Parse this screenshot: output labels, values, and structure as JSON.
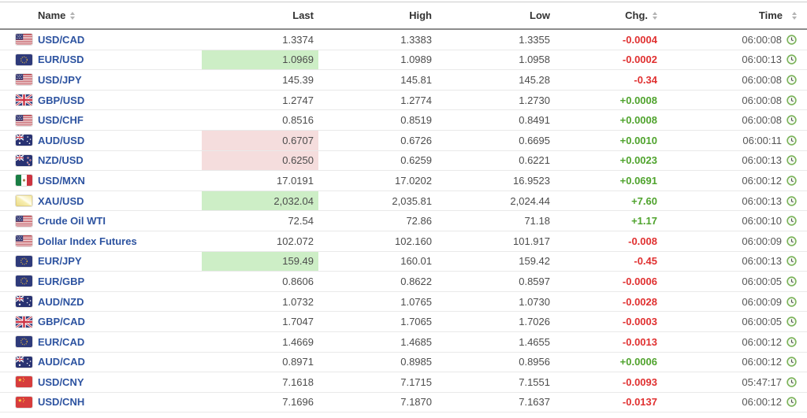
{
  "table": {
    "columns": [
      {
        "label": "Name",
        "sortable": true
      },
      {
        "label": "Last",
        "sortable": false
      },
      {
        "label": "High",
        "sortable": false
      },
      {
        "label": "Low",
        "sortable": false
      },
      {
        "label": "Chg.",
        "sortable": true
      },
      {
        "label": "Time",
        "sortable": true
      }
    ],
    "colors": {
      "up": "#4fa32d",
      "down": "#e03030",
      "hl-green": "#cdeec6",
      "hl-red": "#f5dddd",
      "name-link": "#2d53a0",
      "value-text": "#4c4c4c",
      "header-text": "#333333"
    },
    "rows": [
      {
        "flag": "us-flag",
        "name": "USD/CAD",
        "last": "1.3374",
        "high": "1.3383",
        "low": "1.3355",
        "chg": "-0.0004",
        "direction": "down",
        "last_highlight": "none",
        "time": "06:00:08"
      },
      {
        "flag": "eu-flag",
        "name": "EUR/USD",
        "last": "1.0969",
        "high": "1.0989",
        "low": "1.0958",
        "chg": "-0.0002",
        "direction": "down",
        "last_highlight": "green",
        "time": "06:00:13"
      },
      {
        "flag": "us-flag",
        "name": "USD/JPY",
        "last": "145.39",
        "high": "145.81",
        "low": "145.28",
        "chg": "-0.34",
        "direction": "down",
        "last_highlight": "none",
        "time": "06:00:08"
      },
      {
        "flag": "gb-flag",
        "name": "GBP/USD",
        "last": "1.2747",
        "high": "1.2774",
        "low": "1.2730",
        "chg": "+0.0008",
        "direction": "up",
        "last_highlight": "none",
        "time": "06:00:08"
      },
      {
        "flag": "us-flag",
        "name": "USD/CHF",
        "last": "0.8516",
        "high": "0.8519",
        "low": "0.8491",
        "chg": "+0.0008",
        "direction": "up",
        "last_highlight": "none",
        "time": "06:00:08"
      },
      {
        "flag": "au-flag",
        "name": "AUD/USD",
        "last": "0.6707",
        "high": "0.6726",
        "low": "0.6695",
        "chg": "+0.0010",
        "direction": "up",
        "last_highlight": "red",
        "time": "06:00:11"
      },
      {
        "flag": "nz-flag",
        "name": "NZD/USD",
        "last": "0.6250",
        "high": "0.6259",
        "low": "0.6221",
        "chg": "+0.0023",
        "direction": "up",
        "last_highlight": "red",
        "time": "06:00:13"
      },
      {
        "flag": "mx-flag",
        "name": "USD/MXN",
        "last": "17.0191",
        "high": "17.0202",
        "low": "16.9523",
        "chg": "+0.0691",
        "direction": "up",
        "last_highlight": "none",
        "time": "06:00:12"
      },
      {
        "flag": "gold-bar",
        "name": "XAU/USD",
        "last": "2,032.04",
        "high": "2,035.81",
        "low": "2,024.44",
        "chg": "+7.60",
        "direction": "up",
        "last_highlight": "green",
        "time": "06:00:13"
      },
      {
        "flag": "us-flag",
        "name": "Crude Oil WTI",
        "last": "72.54",
        "high": "72.86",
        "low": "71.18",
        "chg": "+1.17",
        "direction": "up",
        "last_highlight": "none",
        "time": "06:00:10"
      },
      {
        "flag": "us-flag",
        "name": "Dollar Index Futures",
        "last": "102.072",
        "high": "102.160",
        "low": "101.917",
        "chg": "-0.008",
        "direction": "down",
        "last_highlight": "none",
        "time": "06:00:09"
      },
      {
        "flag": "eu-flag",
        "name": "EUR/JPY",
        "last": "159.49",
        "high": "160.01",
        "low": "159.42",
        "chg": "-0.45",
        "direction": "down",
        "last_highlight": "green",
        "time": "06:00:13"
      },
      {
        "flag": "eu-flag",
        "name": "EUR/GBP",
        "last": "0.8606",
        "high": "0.8622",
        "low": "0.8597",
        "chg": "-0.0006",
        "direction": "down",
        "last_highlight": "none",
        "time": "06:00:05"
      },
      {
        "flag": "au-flag",
        "name": "AUD/NZD",
        "last": "1.0732",
        "high": "1.0765",
        "low": "1.0730",
        "chg": "-0.0028",
        "direction": "down",
        "last_highlight": "none",
        "time": "06:00:09"
      },
      {
        "flag": "gb-flag",
        "name": "GBP/CAD",
        "last": "1.7047",
        "high": "1.7065",
        "low": "1.7026",
        "chg": "-0.0003",
        "direction": "down",
        "last_highlight": "none",
        "time": "06:00:05"
      },
      {
        "flag": "eu-flag",
        "name": "EUR/CAD",
        "last": "1.4669",
        "high": "1.4685",
        "low": "1.4655",
        "chg": "-0.0013",
        "direction": "down",
        "last_highlight": "none",
        "time": "06:00:12"
      },
      {
        "flag": "au-flag",
        "name": "AUD/CAD",
        "last": "0.8971",
        "high": "0.8985",
        "low": "0.8956",
        "chg": "+0.0006",
        "direction": "up",
        "last_highlight": "none",
        "time": "06:00:12"
      },
      {
        "flag": "cn-flag",
        "name": "USD/CNY",
        "last": "7.1618",
        "high": "7.1715",
        "low": "7.1551",
        "chg": "-0.0093",
        "direction": "down",
        "last_highlight": "none",
        "time": "05:47:17"
      },
      {
        "flag": "cn-flag",
        "name": "USD/CNH",
        "last": "7.1696",
        "high": "7.1870",
        "low": "7.1637",
        "chg": "-0.0137",
        "direction": "down",
        "last_highlight": "none",
        "time": "06:00:12"
      }
    ]
  }
}
